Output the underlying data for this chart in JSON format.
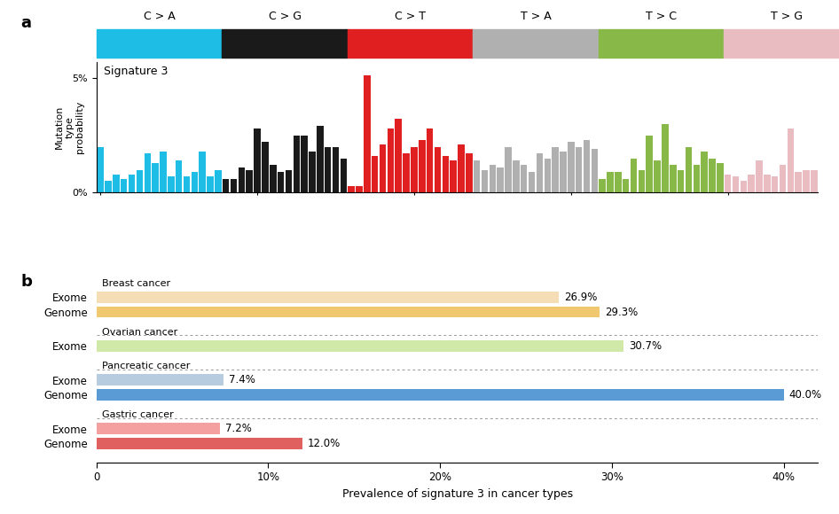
{
  "signature_title": "Signature 3",
  "mutation_groups": [
    {
      "label": "C > A",
      "color": "#1dbde6"
    },
    {
      "label": "C > G",
      "color": "#1a1a1a"
    },
    {
      "label": "C > T",
      "color": "#e02020"
    },
    {
      "label": "T > A",
      "color": "#b0b0b0"
    },
    {
      "label": "T > C",
      "color": "#88b848"
    },
    {
      "label": "T > G",
      "color": "#e8bcc0"
    }
  ],
  "sig3_values": [
    0.02,
    0.005,
    0.008,
    0.006,
    0.008,
    0.01,
    0.017,
    0.013,
    0.018,
    0.007,
    0.014,
    0.007,
    0.009,
    0.018,
    0.007,
    0.01,
    0.006,
    0.006,
    0.011,
    0.01,
    0.028,
    0.022,
    0.012,
    0.009,
    0.01,
    0.025,
    0.025,
    0.018,
    0.029,
    0.02,
    0.02,
    0.015,
    0.003,
    0.003,
    0.051,
    0.016,
    0.021,
    0.028,
    0.032,
    0.017,
    0.02,
    0.023,
    0.028,
    0.02,
    0.016,
    0.014,
    0.021,
    0.017,
    0.014,
    0.01,
    0.012,
    0.011,
    0.02,
    0.014,
    0.012,
    0.009,
    0.017,
    0.015,
    0.02,
    0.018,
    0.022,
    0.02,
    0.023,
    0.019,
    0.006,
    0.009,
    0.009,
    0.006,
    0.015,
    0.01,
    0.025,
    0.014,
    0.03,
    0.012,
    0.01,
    0.02,
    0.012,
    0.018,
    0.015,
    0.013,
    0.008,
    0.007,
    0.005,
    0.008,
    0.014,
    0.008,
    0.007,
    0.012,
    0.028,
    0.009,
    0.01,
    0.01
  ],
  "cancer_bars": [
    {
      "cancer": "Breast cancer",
      "label": "Exome",
      "value": 26.9,
      "color": "#f5ddb5"
    },
    {
      "cancer": "Breast cancer",
      "label": "Genome",
      "value": 29.3,
      "color": "#f0c870"
    },
    {
      "cancer": "Ovarian cancer",
      "label": "Exome",
      "value": 30.7,
      "color": "#d0e8a8"
    },
    {
      "cancer": "Pancreatic cancer",
      "label": "Exome",
      "value": 7.4,
      "color": "#b8cce0"
    },
    {
      "cancer": "Pancreatic cancer",
      "label": "Genome",
      "value": 40.0,
      "color": "#5b9bd5"
    },
    {
      "cancer": "Gastric cancer",
      "label": "Exome",
      "value": 7.2,
      "color": "#f4a0a0"
    },
    {
      "cancer": "Gastric cancer",
      "label": "Genome",
      "value": 12.0,
      "color": "#e06060"
    }
  ],
  "cancer_xlabel": "Prevalence of signature 3 in cancer types",
  "cancer_xticks": [
    0,
    10,
    20,
    30,
    40
  ],
  "cancer_xticklabels": [
    "0",
    "10%",
    "20%",
    "30%",
    "40%"
  ],
  "panel_a_label": "a",
  "panel_b_label": "b",
  "ylabel_sig": "Mutation\ntype\nprobability"
}
